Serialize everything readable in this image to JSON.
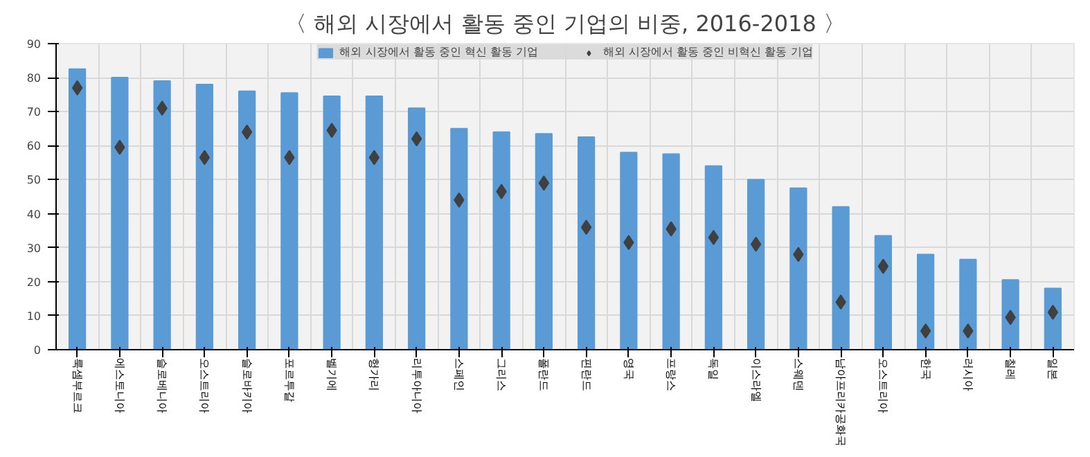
{
  "chart_data": {
    "type": "bar",
    "title": "〈 해외 시장에서 활동 중인 기업의 비중, 2016-2018 〉",
    "categories": [
      "룩셈부르크",
      "에스토니아",
      "슬로베니아",
      "오스트리아",
      "슬로바키아",
      "포르투갈",
      "벨기에",
      "헝가리",
      "리투아니아",
      "스페인",
      "그리스",
      "폴란드",
      "핀란드",
      "영국",
      "프랑스",
      "독일",
      "이스라엘",
      "스웨덴",
      "남아프리카공화국",
      "오스트리아",
      "한국",
      "러시아",
      "칠레",
      "일본"
    ],
    "series": [
      {
        "name": "해외 시장에서 활동 중인 혁신 활동 기업",
        "color": "#5b9bd5",
        "values": [
          82.5,
          80,
          79,
          78,
          76,
          75.5,
          74.5,
          74.5,
          71,
          65,
          64,
          63.5,
          62.5,
          58,
          57.5,
          54,
          50,
          47.5,
          42,
          33.5,
          28,
          26.5,
          20.5,
          18
        ]
      },
      {
        "name": "해외 시장에서 활동 중인 비혁신 활동 기업",
        "type": "scatter",
        "marker": "diamond",
        "color": "#404040",
        "values": [
          77,
          59.5,
          71,
          56.5,
          64,
          56.5,
          64.5,
          56.5,
          62,
          44,
          46.5,
          49,
          36,
          31.5,
          35.5,
          33,
          31,
          28,
          14,
          24.5,
          5.5,
          5.5,
          9.5,
          11
        ]
      }
    ],
    "ylim": [
      0,
      90
    ],
    "yticks": [
      0,
      10,
      20,
      30,
      40,
      50,
      60,
      70,
      80,
      90
    ],
    "grid": true,
    "legend": "top"
  }
}
